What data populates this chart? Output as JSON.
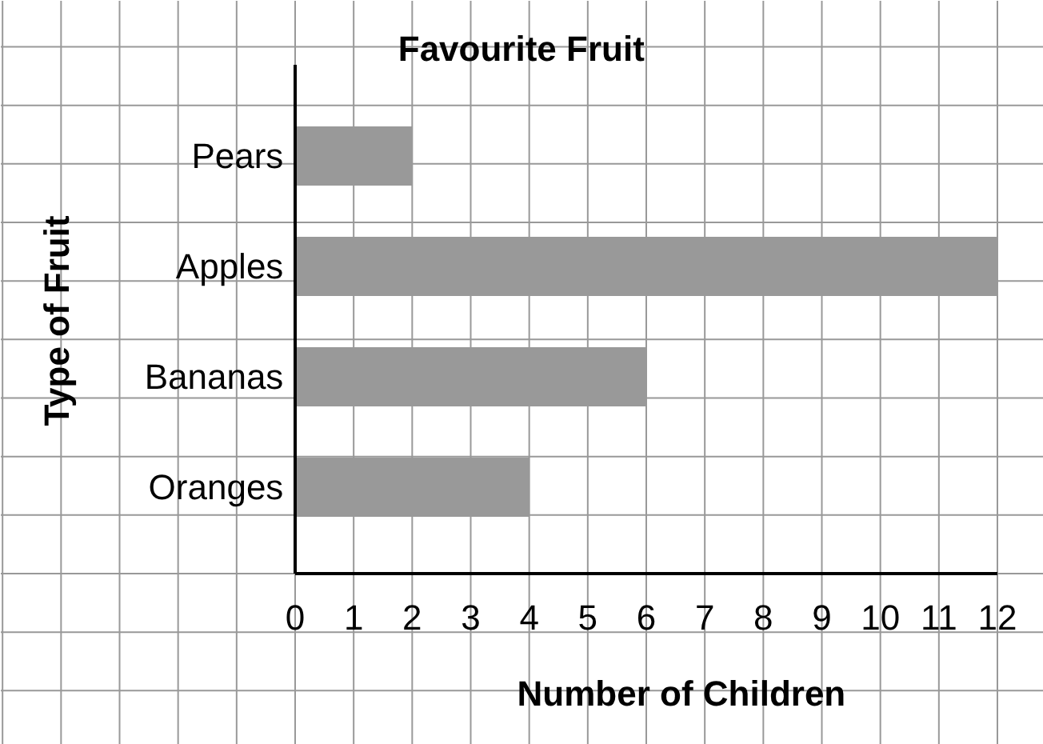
{
  "chart_data": {
    "type": "bar",
    "orientation": "horizontal",
    "title": "Favourite Fruit",
    "xlabel": "Number of Children",
    "ylabel": "Type of Fruit",
    "categories": [
      "Pears",
      "Apples",
      "Bananas",
      "Oranges"
    ],
    "values": [
      2,
      12,
      6,
      4
    ],
    "color": "#999999",
    "xlim": [
      0,
      12
    ],
    "xticks": [
      0,
      1,
      2,
      3,
      4,
      5,
      6,
      7,
      8,
      9,
      10,
      11,
      12
    ],
    "grid": true
  }
}
